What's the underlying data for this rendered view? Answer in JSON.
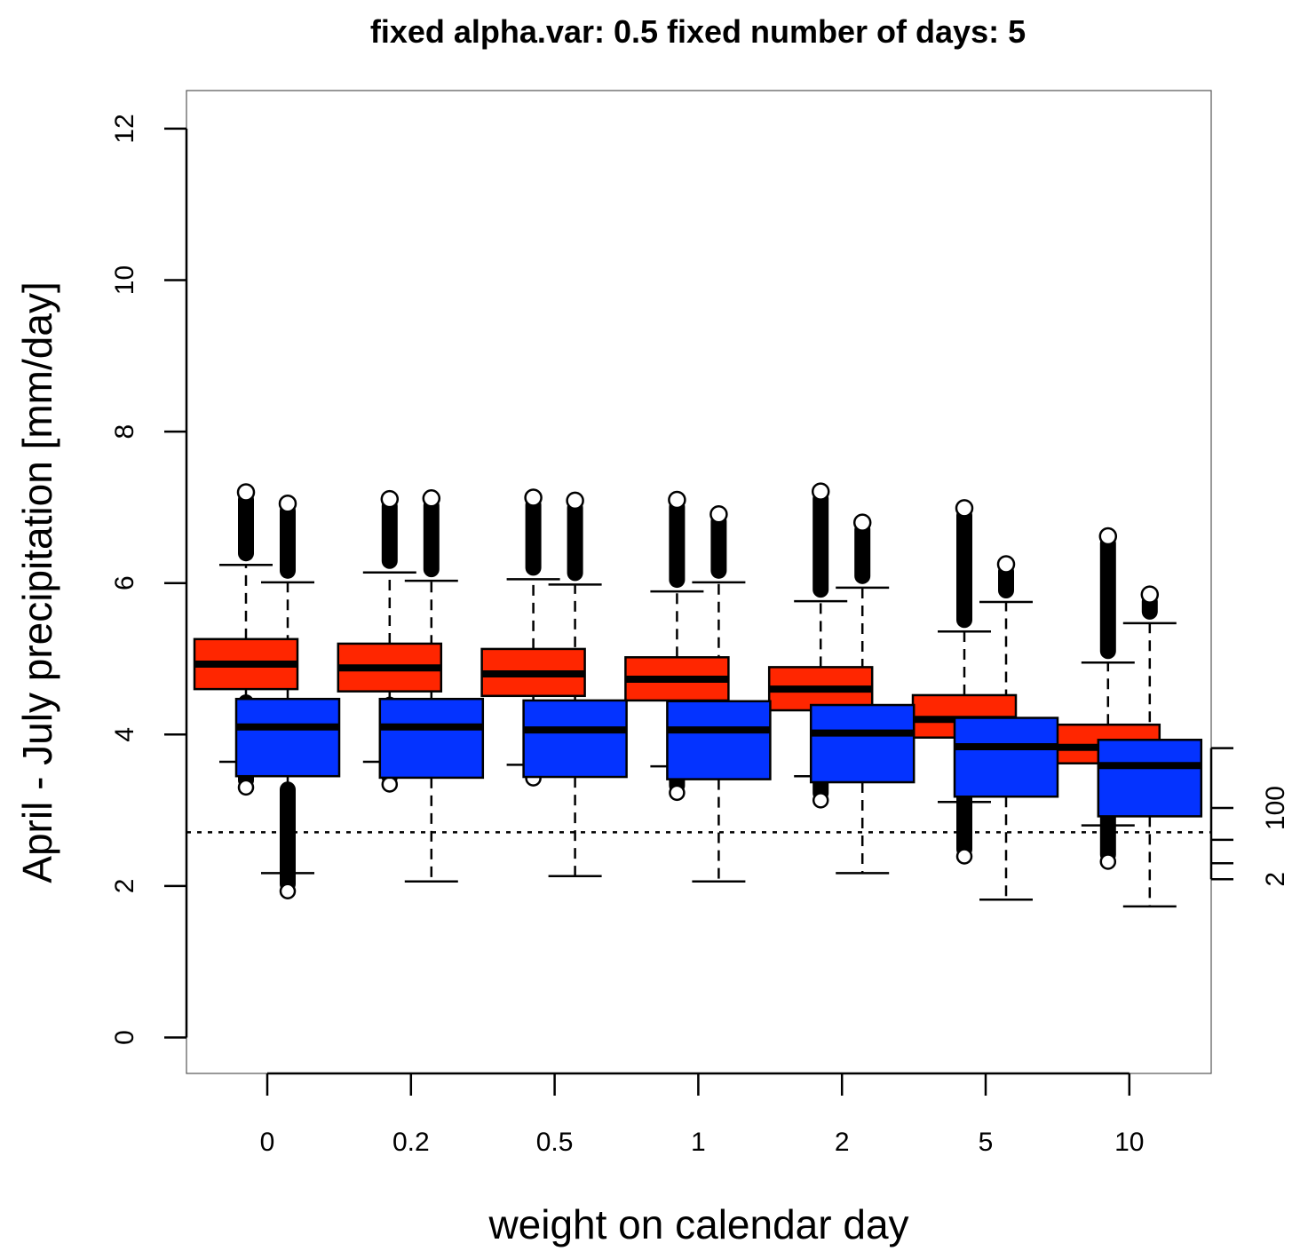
{
  "chart_data": {
    "type": "box",
    "title": "fixed alpha.var: 0.5 fixed number of days: 5",
    "xlabel": "weight on calendar day",
    "ylabel": "April - July precipitation [mm/day]",
    "ylim": [
      -0.48,
      12.5
    ],
    "yticks": [
      0,
      2,
      4,
      6,
      8,
      10,
      12
    ],
    "ytick_labels": [
      "0",
      "2",
      "4",
      "6",
      "8",
      "10",
      "12"
    ],
    "categories": [
      "0",
      "0.2",
      "0.5",
      "1",
      "2",
      "5",
      "10"
    ],
    "grid": false,
    "reference_line": {
      "value": 2.71,
      "style": "dotted"
    },
    "right_axis": {
      "tick_values": [
        3.82,
        3.03,
        2.61,
        2.3,
        2.09
      ],
      "labels": [
        {
          "text": "100",
          "value": 3.03
        },
        {
          "text": "2",
          "value": 2.09
        }
      ]
    },
    "series": [
      {
        "name": "red",
        "color": "#ff2600",
        "boxes": [
          {
            "whisker_low": 3.64,
            "q1": 4.6,
            "median": 4.93,
            "q3": 5.26,
            "whisker_high": 6.24,
            "outlier_max": 7.21,
            "outlier_min": 3.29
          },
          {
            "whisker_low": 3.64,
            "q1": 4.57,
            "median": 4.88,
            "q3": 5.2,
            "whisker_high": 6.14,
            "outlier_max": 7.12,
            "outlier_min": 3.33
          },
          {
            "whisker_low": 3.6,
            "q1": 4.51,
            "median": 4.8,
            "q3": 5.13,
            "whisker_high": 6.05,
            "outlier_max": 7.14,
            "outlier_min": 3.41
          },
          {
            "whisker_low": 3.58,
            "q1": 4.45,
            "median": 4.73,
            "q3": 5.02,
            "whisker_high": 5.89,
            "outlier_max": 7.11,
            "outlier_min": 3.22
          },
          {
            "whisker_low": 3.45,
            "q1": 4.32,
            "median": 4.6,
            "q3": 4.89,
            "whisker_high": 5.76,
            "outlier_max": 7.22,
            "outlier_min": 3.12
          },
          {
            "whisker_low": 3.11,
            "q1": 3.96,
            "median": 4.2,
            "q3": 4.52,
            "whisker_high": 5.36,
            "outlier_max": 7.0,
            "outlier_min": 2.38
          },
          {
            "whisker_low": 2.8,
            "q1": 3.62,
            "median": 3.83,
            "q3": 4.13,
            "whisker_high": 4.95,
            "outlier_max": 6.63,
            "outlier_min": 2.31
          }
        ]
      },
      {
        "name": "blue",
        "color": "#0433ff",
        "boxes": [
          {
            "whisker_low": 2.17,
            "q1": 3.45,
            "median": 4.1,
            "q3": 4.47,
            "whisker_high": 6.01,
            "outlier_max": 7.06,
            "outlier_min": 1.92
          },
          {
            "whisker_low": 2.06,
            "q1": 3.43,
            "median": 4.1,
            "q3": 4.47,
            "whisker_high": 6.03,
            "outlier_max": 7.13,
            "outlier_min": null
          },
          {
            "whisker_low": 2.13,
            "q1": 3.44,
            "median": 4.06,
            "q3": 4.45,
            "whisker_high": 5.98,
            "outlier_max": 7.1,
            "outlier_min": null
          },
          {
            "whisker_low": 2.06,
            "q1": 3.41,
            "median": 4.06,
            "q3": 4.44,
            "whisker_high": 6.01,
            "outlier_max": 6.92,
            "outlier_min": null
          },
          {
            "whisker_low": 2.17,
            "q1": 3.37,
            "median": 4.02,
            "q3": 4.39,
            "whisker_high": 5.94,
            "outlier_max": 6.81,
            "outlier_min": null
          },
          {
            "whisker_low": 1.82,
            "q1": 3.18,
            "median": 3.84,
            "q3": 4.22,
            "whisker_high": 5.75,
            "outlier_max": 6.26,
            "outlier_min": null
          },
          {
            "whisker_low": 1.73,
            "q1": 2.92,
            "median": 3.59,
            "q3": 3.93,
            "whisker_high": 5.47,
            "outlier_max": 5.86,
            "outlier_min": null
          }
        ]
      }
    ]
  }
}
